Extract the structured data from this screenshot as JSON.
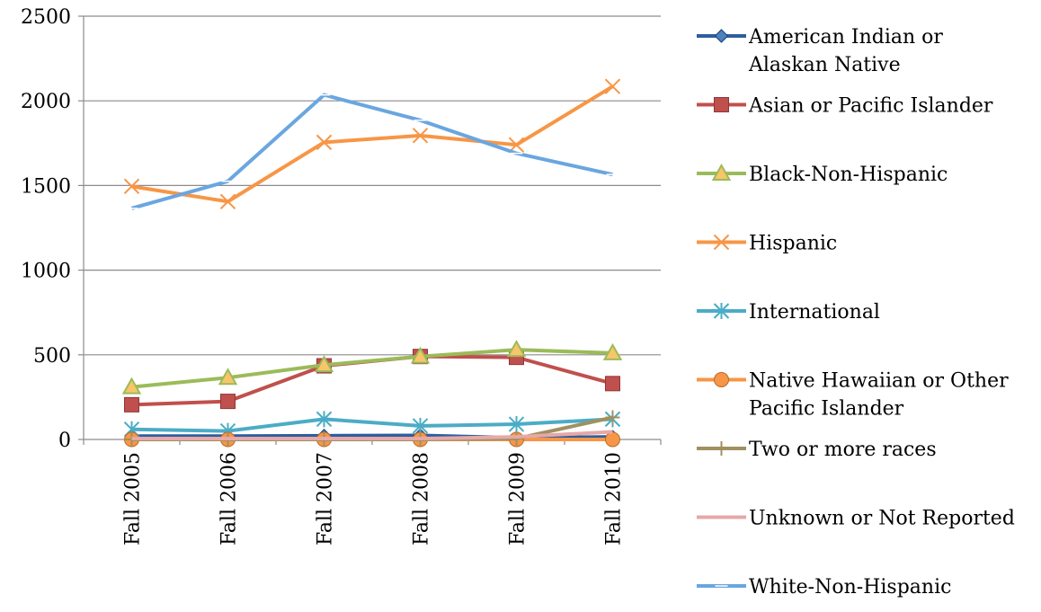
{
  "chart_data": {
    "type": "line",
    "title": "",
    "xlabel": "",
    "ylabel": "",
    "categories": [
      "Fall 2005",
      "Fall 2006",
      "Fall 2007",
      "Fall 2008",
      "Fall 2009",
      "Fall 2010"
    ],
    "ylim": [
      0,
      2500
    ],
    "yticks": [
      0,
      500,
      1000,
      1500,
      2000,
      2500
    ],
    "grid": "horizontal",
    "legend_position": "right",
    "series": [
      {
        "name": "American Indian or Alaskan Native",
        "color": "#2e5e9e",
        "marker": "diamond",
        "values": [
          20,
          20,
          22,
          24,
          10,
          15
        ]
      },
      {
        "name": "Asian or Pacific Islander",
        "color": "#c0504d",
        "marker": "square",
        "values": [
          205,
          225,
          435,
          490,
          485,
          330
        ]
      },
      {
        "name": "Black-Non-Hispanic",
        "color": "#9bbb59",
        "marker": "triangle",
        "values": [
          310,
          365,
          440,
          490,
          530,
          510
        ]
      },
      {
        "name": "Hispanic",
        "color": "#f79646",
        "marker": "x",
        "values": [
          1495,
          1405,
          1755,
          1795,
          1740,
          2085
        ]
      },
      {
        "name": "International",
        "color": "#4bacc6",
        "marker": "star",
        "values": [
          60,
          50,
          120,
          80,
          90,
          120
        ]
      },
      {
        "name": "Native Hawaiian or Other Pacific Islander",
        "color": "#f79646",
        "marker": "circle",
        "values": [
          0,
          0,
          0,
          0,
          0,
          0
        ]
      },
      {
        "name": "Two or more races",
        "color": "#a09060",
        "marker": "plus",
        "values": [
          0,
          0,
          0,
          0,
          5,
          130
        ]
      },
      {
        "name": "Unknown or Not Reported",
        "color": "#e6a8a8",
        "marker": "none",
        "values": [
          5,
          5,
          5,
          5,
          15,
          45
        ]
      },
      {
        "name": "White-Non-Hispanic",
        "color": "#6aa6e0",
        "marker": "dash",
        "values": [
          1365,
          1525,
          2035,
          1885,
          1690,
          1565
        ]
      }
    ]
  }
}
